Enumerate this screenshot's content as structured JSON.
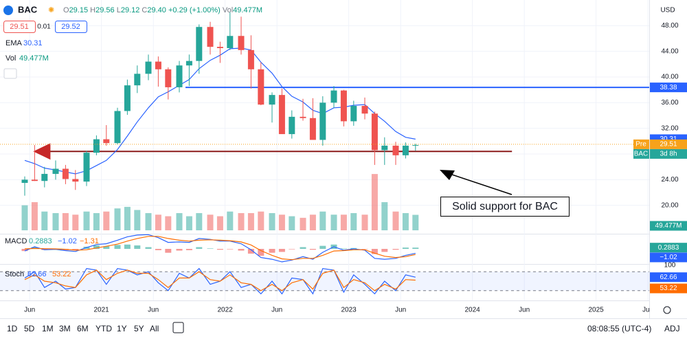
{
  "header": {
    "symbol": "BAC",
    "open_label": "O",
    "open": "29.15",
    "high_label": "H",
    "high": "29.56",
    "low_label": "L",
    "low": "29.12",
    "close_label": "C",
    "close": "29.40",
    "change": "+0.29 (+1.00%)",
    "vol_label": "Vol",
    "vol": "49.477M",
    "bid": "29.51",
    "spread": "0.01",
    "ask": "29.52",
    "currency": "USD"
  },
  "toolbar": {
    "ranges": [
      "1D",
      "5D",
      "1M",
      "3M",
      "6M",
      "YTD",
      "1Y",
      "5Y",
      "All"
    ],
    "time": "08:08:55 (UTC-4)",
    "adj": "ADJ"
  },
  "annotation": {
    "text": "Solid support for BAC"
  },
  "chart_data": {
    "type": "candlestick",
    "x": [
      2020.38,
      2020.46,
      2020.54,
      2020.63,
      2020.71,
      2020.79,
      2020.88,
      2020.96,
      2021.04,
      2021.13,
      2021.21,
      2021.29,
      2021.38,
      2021.46,
      2021.54,
      2021.63,
      2021.71,
      2021.79,
      2021.88,
      2021.96,
      2022.04,
      2022.13,
      2022.21,
      2022.29,
      2022.38,
      2022.46,
      2022.54,
      2022.63,
      2022.71,
      2022.79,
      2022.88,
      2022.96,
      2023.04,
      2023.13,
      2023.21,
      2023.29,
      2023.38,
      2023.46,
      2023.54
    ],
    "open": [
      23.5,
      24.0,
      23.8,
      24.9,
      25.7,
      24.1,
      23.7,
      28.2,
      30.3,
      29.7,
      34.7,
      38.7,
      40.5,
      42.4,
      41.2,
      38.4,
      41.8,
      42.5,
      47.8,
      44.7,
      44.5,
      46.4,
      44.2,
      41.2,
      35.7,
      37.2,
      31.1,
      33.8,
      33.6,
      30.2,
      36.0,
      37.9,
      33.1,
      35.5,
      34.3,
      28.6,
      29.3,
      27.8,
      29.3
    ],
    "high": [
      24.5,
      29.4,
      26.0,
      27.0,
      26.3,
      25.5,
      28.5,
      30.9,
      32.5,
      35.2,
      39.6,
      41.8,
      43.5,
      43.2,
      41.5,
      42.5,
      43.5,
      48.2,
      48.6,
      45.5,
      50.1,
      49.4,
      46.5,
      42.3,
      37.6,
      38.2,
      34.8,
      36.6,
      36.7,
      37.0,
      38.6,
      38.0,
      36.3,
      36.8,
      34.6,
      30.6,
      29.9,
      29.8,
      29.6
    ],
    "low": [
      21.5,
      23.8,
      22.8,
      24.0,
      23.3,
      22.4,
      23.0,
      27.8,
      29.3,
      29.5,
      34.1,
      37.5,
      39.5,
      38.5,
      36.5,
      37.6,
      38.6,
      40.5,
      43.5,
      42.2,
      44.2,
      43.5,
      38.2,
      35.6,
      32.9,
      31.2,
      30.4,
      33.2,
      30.2,
      29.3,
      35.2,
      32.3,
      32.4,
      33.4,
      26.3,
      26.3,
      26.3,
      27.3,
      28.5
    ],
    "close": [
      24.0,
      23.8,
      24.9,
      25.7,
      24.1,
      23.7,
      28.2,
      30.3,
      29.7,
      34.7,
      38.7,
      40.5,
      42.4,
      41.2,
      38.4,
      41.8,
      42.5,
      47.8,
      44.7,
      44.5,
      46.4,
      44.2,
      41.2,
      35.7,
      37.2,
      31.1,
      33.8,
      33.6,
      30.2,
      36.0,
      37.9,
      33.1,
      35.5,
      34.3,
      28.6,
      29.3,
      27.8,
      29.3,
      29.4
    ],
    "up_color": "#26a69a",
    "down_color": "#ef5350",
    "xlim": [
      2020.18,
      2025.43
    ],
    "xticks": [
      {
        "value": 2020.42,
        "label": "Jun"
      },
      2021,
      {
        "value": 2021.42,
        "label": "Jun"
      },
      2022,
      {
        "value": 2022.42,
        "label": "Jun"
      },
      2023,
      {
        "value": 2023.42,
        "label": "Jun"
      },
      2024,
      {
        "value": 2024.42,
        "label": "Jun"
      },
      2025,
      {
        "value": 2025.42,
        "label": "Jun"
      }
    ],
    "ylim": [
      16,
      52
    ],
    "yticks": [
      {
        "value": 20,
        "label": "20.00"
      },
      {
        "value": 24,
        "label": "24.00"
      },
      {
        "value": 28,
        "label": "28.00"
      },
      {
        "value": 32,
        "label": "32.00"
      },
      {
        "value": 36,
        "label": "36.00"
      },
      {
        "value": 40,
        "label": "40.00"
      },
      {
        "value": 44,
        "label": "44.00"
      },
      {
        "value": 48,
        "label": "48.00"
      }
    ],
    "grid": true,
    "ema": {
      "name": "EMA",
      "last": 30.31,
      "color": "#2962ff",
      "values": [
        27,
        26.5,
        25.8,
        25.5,
        25.2,
        24.9,
        25.4,
        26.2,
        27.0,
        28.7,
        30.8,
        33.0,
        35.2,
        36.9,
        37.7,
        38.7,
        39.6,
        41.3,
        42.6,
        43.4,
        44.4,
        44.5,
        44.2,
        42.3,
        40.6,
        38.5,
        37.0,
        36.1,
        34.8,
        34.3,
        35.2,
        35.3,
        35.6,
        35.7,
        34.3,
        33.1,
        31.5,
        30.6,
        30.31
      ]
    },
    "volume": {
      "name": "Vol",
      "last_label": "49.477M",
      "ylim": [
        0,
        400
      ],
      "values": [
        80,
        90,
        60,
        55,
        55,
        50,
        60,
        55,
        60,
        70,
        75,
        65,
        55,
        50,
        45,
        55,
        45,
        55,
        50,
        45,
        60,
        55,
        55,
        60,
        55,
        50,
        45,
        40,
        50,
        60,
        50,
        50,
        55,
        50,
        180,
        90,
        60,
        55,
        49.477
      ]
    },
    "hlines": [
      {
        "value": 38.38,
        "label": "38.38",
        "color": "#2962ff",
        "x": [
          2021.68,
          2025.43
        ]
      },
      {
        "value": 28.4,
        "color": "#8b1a1a",
        "x": [
          2020.56,
          2024.32
        ]
      }
    ],
    "price_tags": [
      {
        "value": 30.31,
        "label": "30.31",
        "color": "#2962ff"
      },
      {
        "value": 29.51,
        "prefix": "Pre",
        "label": "29.51",
        "color": "#f7a21b"
      }
    ],
    "status_tag": {
      "prefix": "BAC",
      "label": "3d 8h",
      "color": "#26a69a"
    },
    "macd": {
      "name": "MACD",
      "legend": [
        "0.2883",
        "−1.02",
        "−1.31"
      ],
      "ylim": [
        -3.5,
        3.5
      ],
      "macd_color": "#2962ff",
      "signal_color": "#ff6d00",
      "histogram": [
        -0.5,
        0.4,
        -0.25,
        -0.1,
        -0.3,
        -0.3,
        0.5,
        0.8,
        0.6,
        0.9,
        1.0,
        0.8,
        0.4,
        -0.3,
        -0.9,
        -0.4,
        -0.3,
        0.4,
        0.1,
        -0.2,
        -0.1,
        -0.4,
        -1.1,
        -1.6,
        -0.9,
        -0.7,
        -0.1,
        0.4,
        -0.2,
        0.7,
        1.0,
        0.1,
        0.2,
        -0.1,
        -1.2,
        -0.7,
        -0.2,
        0.3,
        0.2883
      ],
      "macd": [
        -0.5,
        0.5,
        -0.2,
        -0.1,
        -0.4,
        -0.6,
        0.3,
        1.0,
        1.2,
        2.0,
        2.8,
        3.2,
        3.3,
        2.6,
        1.5,
        1.6,
        1.5,
        2.4,
        2.2,
        1.8,
        1.8,
        1.2,
        -0.2,
        -2.0,
        -2.4,
        -3.0,
        -2.6,
        -1.8,
        -2.4,
        -0.8,
        0.5,
        -0.3,
        0.0,
        -0.3,
        -2.2,
        -2.4,
        -2.2,
        -1.5,
        -1.02
      ],
      "signal": [
        0,
        0.1,
        0.05,
        0,
        -0.1,
        -0.3,
        -0.2,
        0.2,
        0.6,
        1.1,
        1.8,
        2.4,
        2.9,
        2.9,
        2.4,
        2.0,
        1.8,
        2.0,
        2.1,
        2.0,
        1.9,
        1.6,
        0.9,
        -0.4,
        -1.5,
        -2.3,
        -2.5,
        -2.2,
        -2.2,
        -1.5,
        -0.5,
        -0.4,
        -0.2,
        -0.2,
        -1.0,
        -1.7,
        -2.0,
        -1.8,
        -1.31
      ]
    },
    "stoch": {
      "name": "Stoch",
      "legend": [
        "62.66",
        "53.22"
      ],
      "ylim": [
        0,
        100
      ],
      "yticks": [
        100
      ],
      "band": [
        20,
        80
      ],
      "k_color": "#2962ff",
      "d_color": "#ff6d00",
      "k": [
        60,
        80,
        30,
        50,
        25,
        30,
        90,
        85,
        40,
        90,
        85,
        70,
        80,
        45,
        20,
        75,
        60,
        90,
        40,
        50,
        80,
        30,
        40,
        10,
        50,
        10,
        60,
        55,
        10,
        90,
        85,
        15,
        70,
        40,
        10,
        50,
        20,
        70,
        62.66
      ],
      "d": [
        55,
        70,
        50,
        45,
        35,
        30,
        70,
        85,
        55,
        75,
        85,
        75,
        75,
        55,
        30,
        60,
        60,
        80,
        55,
        50,
        70,
        45,
        40,
        20,
        40,
        20,
        45,
        55,
        25,
        75,
        85,
        30,
        55,
        45,
        20,
        40,
        25,
        55,
        53.22
      ]
    }
  }
}
